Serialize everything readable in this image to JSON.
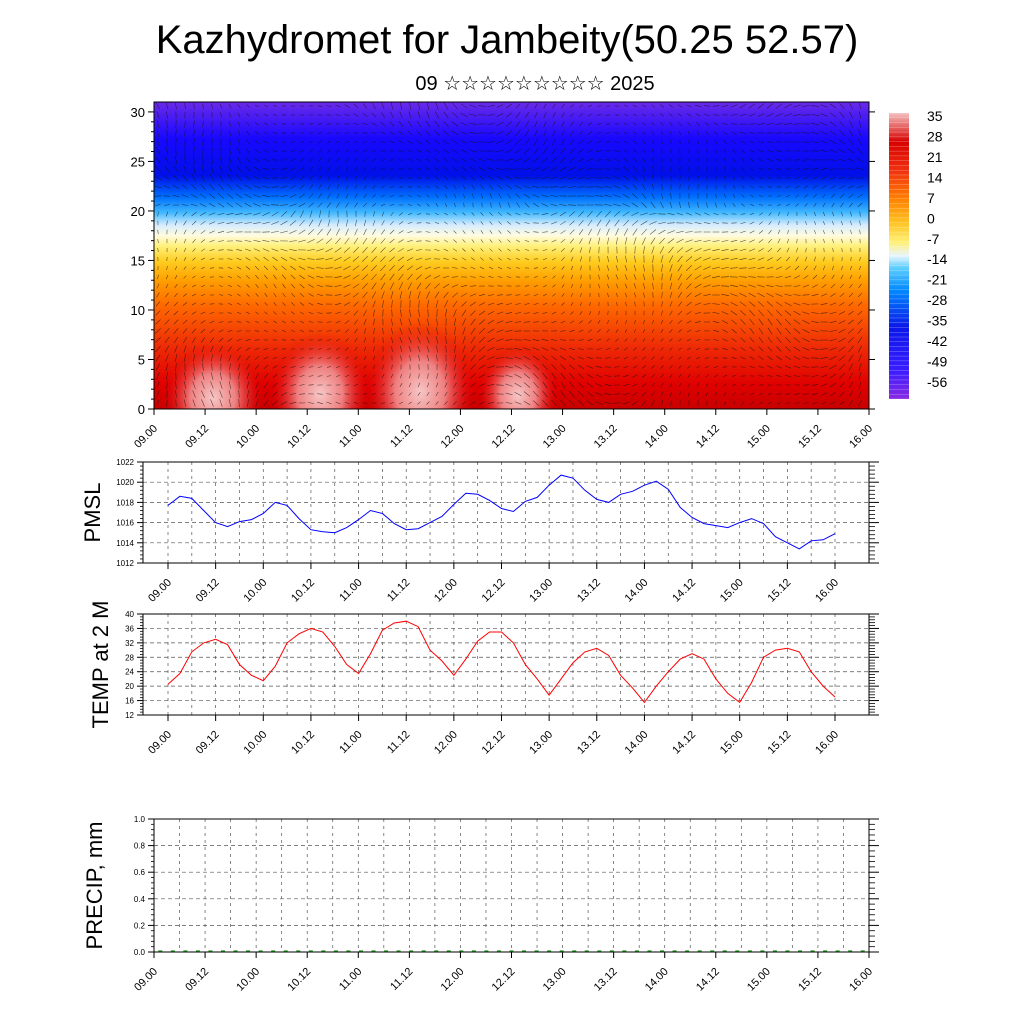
{
  "header": {
    "title": "Kazhydromet for Jambeity(50.25 52.57)",
    "subtitle": "09 ☆☆☆☆☆☆☆☆☆ 2025"
  },
  "time_ticks": [
    "09.00",
    "09.12",
    "10.00",
    "10.12",
    "11.00",
    "11.12",
    "12.00",
    "12.12",
    "13.00",
    "13.12",
    "14.00",
    "14.12",
    "15.00",
    "15.12",
    "16.00"
  ],
  "chart_data": [
    {
      "type": "heatmap",
      "title": "",
      "xlabel": "",
      "ylabel": "",
      "x": [
        "09.00",
        "09.12",
        "10.00",
        "10.12",
        "11.00",
        "11.12",
        "12.00",
        "12.12",
        "13.00",
        "13.12",
        "14.00",
        "14.12",
        "15.00",
        "15.12",
        "16.00"
      ],
      "ylim": [
        0,
        31
      ],
      "y_ticks": [
        0,
        5,
        10,
        15,
        20,
        25,
        30
      ],
      "colorbar_labels": [
        "35",
        "28",
        "21",
        "14",
        "7",
        "0",
        "-7",
        "-14",
        "-21",
        "-28",
        "-35",
        "-42",
        "-49",
        "-56"
      ],
      "colorbar_values": [
        35,
        28,
        21,
        14,
        7,
        0,
        -7,
        -14,
        -21,
        -28,
        -35,
        -42,
        -49,
        -56
      ],
      "colorbar_colors": [
        "#f3b9b9",
        "#e83a3a",
        "#d80000",
        "#f04010",
        "#ff8000",
        "#ffc020",
        "#fff080",
        "#e8f4ff",
        "#30b8ff",
        "#0090ff",
        "#1040ff",
        "#1010e0",
        "#3020ff",
        "#8030e8"
      ],
      "overlay": "wind vectors",
      "grid": false
    },
    {
      "type": "line",
      "ylabel": "PMSL",
      "ylim": [
        1012,
        1022
      ],
      "y_ticks": [
        "1012",
        "1014",
        "1016",
        "1018",
        "1020",
        "1022"
      ],
      "x": [
        0,
        3,
        6,
        9,
        12,
        15,
        18,
        21,
        24,
        27,
        30,
        33,
        36,
        39,
        42,
        45,
        48,
        51,
        54,
        57,
        60,
        63,
        66,
        69,
        72,
        75,
        78,
        81,
        84,
        87,
        90,
        93,
        96,
        99,
        102,
        105,
        108,
        111,
        114,
        117,
        120,
        123,
        126,
        129,
        132,
        135,
        138,
        141,
        144,
        147,
        150,
        153,
        156,
        159,
        162,
        165,
        168
      ],
      "x_tick_labels": [
        "09.00",
        "09.12",
        "10.00",
        "10.12",
        "11.00",
        "11.12",
        "12.00",
        "12.12",
        "13.00",
        "13.12",
        "14.00",
        "14.12",
        "15.00",
        "15.12",
        "16.00"
      ],
      "values": [
        1017.7,
        1018.6,
        1018.4,
        1017.2,
        1016.0,
        1015.6,
        1016.1,
        1016.3,
        1016.9,
        1018.0,
        1017.7,
        1016.4,
        1015.3,
        1015.1,
        1015.0,
        1015.5,
        1016.3,
        1017.2,
        1016.9,
        1015.9,
        1015.3,
        1015.4,
        1016.0,
        1016.6,
        1017.8,
        1018.9,
        1018.8,
        1018.2,
        1017.4,
        1017.1,
        1018.1,
        1018.5,
        1019.7,
        1020.7,
        1020.4,
        1019.2,
        1018.3,
        1018.0,
        1018.8,
        1019.1,
        1019.7,
        1020.1,
        1019.3,
        1017.5,
        1016.5,
        1015.9,
        1015.7,
        1015.5,
        1016.0,
        1016.4,
        1015.9,
        1014.6,
        1014.0,
        1013.4,
        1014.2,
        1014.3,
        1014.9
      ],
      "color": "#0000ff",
      "grid": true
    },
    {
      "type": "line",
      "ylabel": "TEMP at 2 M",
      "ylim": [
        12,
        40
      ],
      "y_ticks": [
        "12",
        "16",
        "20",
        "24",
        "28",
        "32",
        "36",
        "40"
      ],
      "x": [
        0,
        3,
        6,
        9,
        12,
        15,
        18,
        21,
        24,
        27,
        30,
        33,
        36,
        39,
        42,
        45,
        48,
        51,
        54,
        57,
        60,
        63,
        66,
        69,
        72,
        75,
        78,
        81,
        84,
        87,
        90,
        93,
        96,
        99,
        102,
        105,
        108,
        111,
        114,
        117,
        120,
        123,
        126,
        129,
        132,
        135,
        138,
        141,
        144,
        147,
        150,
        153,
        156,
        159,
        162,
        165,
        168
      ],
      "x_tick_labels": [
        "09.00",
        "09.12",
        "10.00",
        "10.12",
        "11.00",
        "11.12",
        "12.00",
        "12.12",
        "13.00",
        "13.12",
        "14.00",
        "14.12",
        "15.00",
        "15.12",
        "16.00"
      ],
      "values": [
        20.5,
        23.5,
        29.5,
        32.0,
        33.0,
        31.5,
        26.0,
        23.0,
        21.5,
        25.5,
        32.0,
        34.5,
        36.0,
        35.0,
        31.0,
        26.0,
        23.5,
        29.0,
        35.5,
        37.5,
        38.0,
        36.5,
        30.0,
        27.0,
        23.0,
        27.5,
        32.5,
        35.0,
        35.0,
        32.0,
        26.0,
        22.0,
        17.5,
        22.0,
        26.5,
        29.5,
        30.5,
        28.5,
        23.0,
        19.5,
        15.5,
        20.0,
        24.0,
        27.5,
        29.0,
        27.5,
        22.0,
        18.0,
        15.5,
        21.0,
        28.0,
        30.0,
        30.5,
        29.5,
        24.0,
        20.0,
        17.0
      ],
      "color": "#ff0000",
      "grid": true
    },
    {
      "type": "bar",
      "ylabel": "PRECIP, mm",
      "ylim": [
        0,
        1.0
      ],
      "y_ticks": [
        "0.0",
        "0.2",
        "0.4",
        "0.6",
        "0.8",
        "1.0"
      ],
      "x_tick_labels": [
        "09.00",
        "09.12",
        "10.00",
        "10.12",
        "11.00",
        "11.12",
        "12.00",
        "12.12",
        "13.00",
        "13.12",
        "14.00",
        "14.12",
        "15.00",
        "15.12",
        "16.00"
      ],
      "values": [
        0,
        0,
        0,
        0,
        0,
        0,
        0,
        0,
        0,
        0,
        0,
        0,
        0,
        0,
        0,
        0,
        0,
        0,
        0,
        0,
        0,
        0,
        0,
        0,
        0,
        0,
        0,
        0,
        0,
        0,
        0,
        0,
        0,
        0,
        0,
        0,
        0,
        0,
        0,
        0,
        0,
        0,
        0,
        0,
        0,
        0,
        0,
        0,
        0,
        0,
        0,
        0,
        0,
        0,
        0,
        0,
        0
      ],
      "color": "#006400",
      "grid": true
    }
  ]
}
